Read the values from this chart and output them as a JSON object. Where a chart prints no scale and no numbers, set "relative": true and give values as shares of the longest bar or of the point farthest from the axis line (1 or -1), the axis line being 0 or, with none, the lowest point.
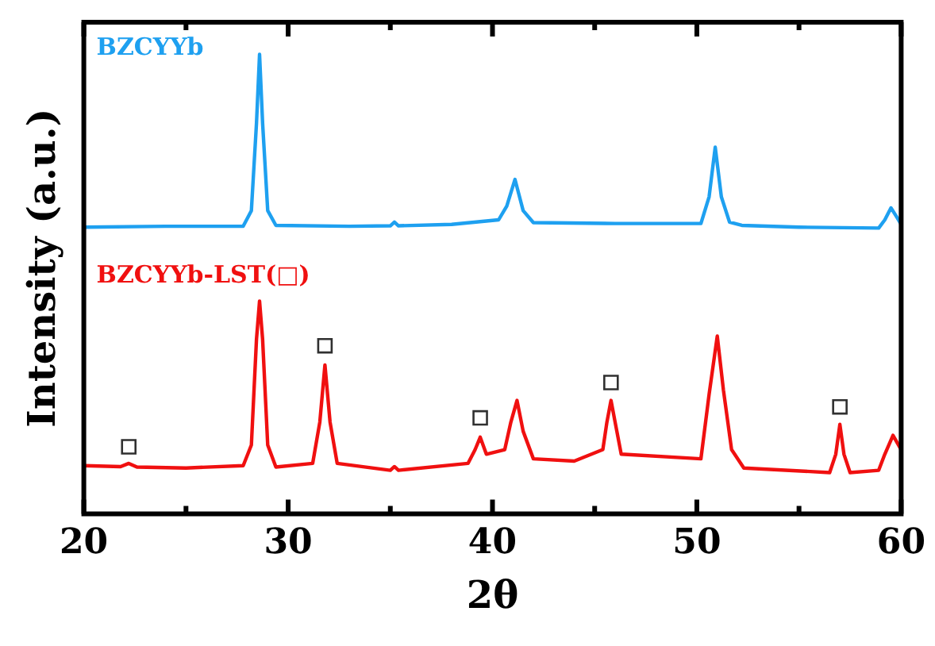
{
  "chart_data": {
    "type": "line",
    "relative": true,
    "xlabel": "2θ",
    "ylabel": "Intensity (a.u.)",
    "xlim": [
      20,
      60
    ],
    "xticks": [
      20,
      {
        "value": 25,
        "label": null
      },
      30,
      {
        "value": 35,
        "label": null
      },
      40,
      {
        "value": 45,
        "label": null
      },
      50,
      {
        "value": 55,
        "label": null
      },
      60
    ],
    "legend": false,
    "marker": "none",
    "line_style": "solid",
    "series": [
      {
        "name": "BZCYYb",
        "color": "#1ea0f0",
        "x": [
          20,
          24,
          27.8,
          28.2,
          28.45,
          28.6,
          28.75,
          29.0,
          29.4,
          33,
          35.0,
          35.2,
          35.4,
          38,
          40.3,
          40.7,
          41.1,
          41.5,
          42,
          46,
          50.2,
          50.6,
          50.9,
          51.2,
          51.6,
          52.2,
          55,
          58.9,
          59.2,
          59.5,
          59.8,
          60
        ],
        "values": [
          0.624,
          0.626,
          0.626,
          0.66,
          0.85,
          1.0,
          0.85,
          0.66,
          0.628,
          0.626,
          0.627,
          0.635,
          0.627,
          0.63,
          0.64,
          0.67,
          0.728,
          0.66,
          0.634,
          0.632,
          0.632,
          0.69,
          0.798,
          0.69,
          0.635,
          0.628,
          0.624,
          0.622,
          0.64,
          0.666,
          0.645,
          0.63
        ]
      },
      {
        "name": "BZCYYb-LST(□)",
        "color": "#f01010",
        "x": [
          20,
          21.8,
          22.2,
          22.6,
          25,
          27.8,
          28.2,
          28.45,
          28.6,
          28.75,
          29.0,
          29.4,
          31.2,
          31.55,
          31.8,
          32.05,
          32.4,
          35,
          35.2,
          35.4,
          38.8,
          39.15,
          39.4,
          39.7,
          40.6,
          40.9,
          41.2,
          41.5,
          42,
          44,
          45.4,
          45.6,
          45.8,
          46.0,
          46.3,
          50.2,
          50.6,
          51.0,
          51.3,
          51.7,
          52.3,
          56.5,
          56.8,
          57.0,
          57.2,
          57.5,
          58.9,
          59.2,
          59.6,
          60
        ],
        "values": [
          0.105,
          0.103,
          0.11,
          0.102,
          0.1,
          0.105,
          0.15,
          0.38,
          0.463,
          0.38,
          0.15,
          0.102,
          0.11,
          0.2,
          0.324,
          0.2,
          0.11,
          0.095,
          0.103,
          0.095,
          0.11,
          0.14,
          0.167,
          0.13,
          0.14,
          0.2,
          0.247,
          0.18,
          0.12,
          0.115,
          0.14,
          0.2,
          0.247,
          0.2,
          0.13,
          0.12,
          0.26,
          0.387,
          0.27,
          0.14,
          0.1,
          0.09,
          0.13,
          0.195,
          0.13,
          0.09,
          0.095,
          0.13,
          0.171,
          0.14
        ]
      },
      {
        "type": "scatter",
        "marker": "square",
        "color": "#303030",
        "x": [
          22.2,
          31.8,
          39.4,
          45.8,
          57.0
        ],
        "values": [
          0.146,
          0.366,
          0.209,
          0.286,
          0.233
        ]
      }
    ]
  }
}
